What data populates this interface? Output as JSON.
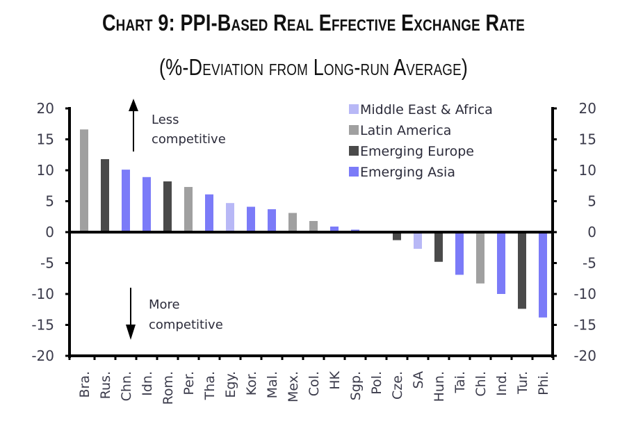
{
  "chart_data": {
    "type": "bar",
    "title": "Chart 9: PPI-Based Real Effective Exchange Rate",
    "subtitle": "(%-Deviation from Long-run Average)",
    "xlabel": "",
    "ylabel": "",
    "ylim": [
      -20,
      20
    ],
    "yticks": [
      20,
      15,
      10,
      5,
      0,
      -5,
      -10,
      -15,
      -20
    ],
    "grid": false,
    "legend_position": "top-right",
    "categories": [
      "Bra.",
      "Rus.",
      "Chn.",
      "Idn.",
      "Rom.",
      "Per.",
      "Tha.",
      "Egy.",
      "Kor.",
      "Mal.",
      "Mex.",
      "Col.",
      "HK",
      "Sgp.",
      "Pol.",
      "Cze.",
      "SA",
      "Hun.",
      "Tai.",
      "Chl.",
      "Ind.",
      "Tur.",
      "Phi."
    ],
    "values": [
      16.6,
      11.8,
      10.1,
      8.9,
      8.2,
      7.3,
      6.1,
      4.7,
      4.1,
      3.7,
      3.1,
      1.8,
      0.9,
      0.4,
      0.0,
      -1.3,
      -2.7,
      -4.8,
      -6.9,
      -8.3,
      -10.0,
      -12.4,
      -13.8
    ],
    "groups": [
      "Latin America",
      "Emerging Europe",
      "Emerging Asia",
      "Emerging Asia",
      "Emerging Europe",
      "Latin America",
      "Emerging Asia",
      "Middle East & Africa",
      "Emerging Asia",
      "Emerging Asia",
      "Latin America",
      "Latin America",
      "Emerging Asia",
      "Emerging Asia",
      "Emerging Europe",
      "Emerging Europe",
      "Middle East & Africa",
      "Emerging Europe",
      "Emerging Asia",
      "Latin America",
      "Emerging Asia",
      "Emerging Europe",
      "Emerging Asia"
    ],
    "series": [
      {
        "name": "Middle East & Africa",
        "color": "#b8b8f6"
      },
      {
        "name": "Latin America",
        "color": "#a0a0a0"
      },
      {
        "name": "Emerging Europe",
        "color": "#4a4a4a"
      },
      {
        "name": "Emerging Asia",
        "color": "#7b7bf8"
      }
    ],
    "annotations": [
      {
        "text_line1": "Less",
        "text_line2": "competitive",
        "arrow": "up"
      },
      {
        "text_line1": "More",
        "text_line2": "competitive",
        "arrow": "down"
      }
    ],
    "secondary_axis": "right (mirrors left)"
  }
}
